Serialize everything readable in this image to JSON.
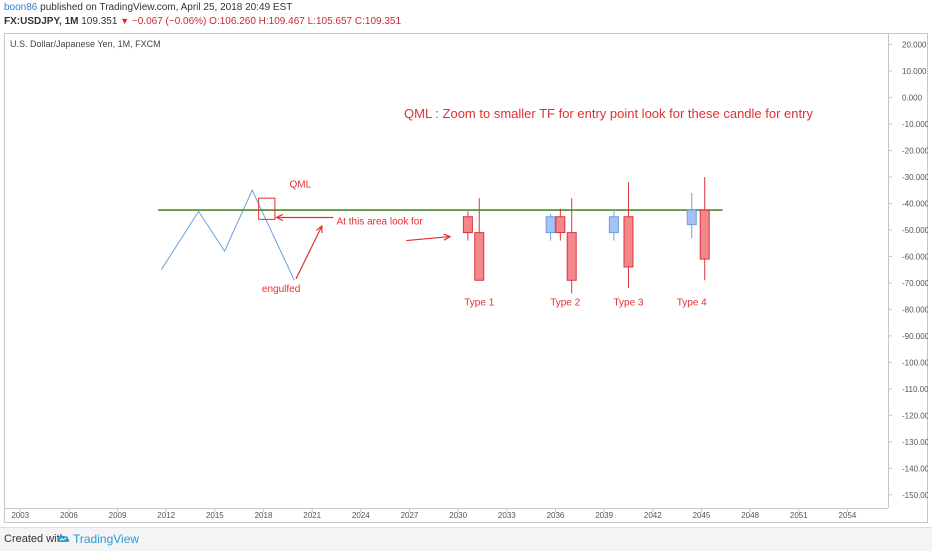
{
  "header": {
    "author": "boon86",
    "published_text": "published on TradingView.com, April 25, 2018 20:49 EST",
    "symbol": "FX:USDJPY, 1M",
    "last": "109.351",
    "change": "−0.067 (−0.06%)",
    "ohlc_o": "O:106.260",
    "ohlc_h": "H:109.467",
    "ohlc_l": "L:105.657",
    "ohlc_c": "C:109.351"
  },
  "chart": {
    "title": "U.S. Dollar/Japanese Yen, 1M, FXCM"
  },
  "footer": {
    "created_with": "Created with",
    "brand": "TradingView"
  },
  "colors": {
    "up": "#a4c2f4",
    "up_border": "#6f9ed8",
    "down": "#f4878c",
    "down_border": "#d9363e",
    "annotation": "#e03030",
    "level_line": "#4c8a2a",
    "price_line": "#6a9fd8"
  },
  "chart_data": {
    "type": "candlestick",
    "xlim": [
      2002,
      2056.5
    ],
    "ylim": [
      -155,
      24
    ],
    "x_ticks": [
      "2003",
      "2006",
      "2009",
      "2012",
      "2015",
      "2018",
      "2021",
      "2024",
      "2027",
      "2030",
      "2033",
      "2036",
      "2039",
      "2042",
      "2045",
      "2048",
      "2051",
      "2054"
    ],
    "y_ticks": [
      "20.000",
      "10.000",
      "0.000",
      "-10.000",
      "-20.000",
      "-30.000",
      "-40.000",
      "-50.000",
      "-60.000",
      "-70.000",
      "-80.000",
      "-90.000",
      "-100.000",
      "-110.000",
      "-120.000",
      "-130.000",
      "-140.000",
      "-150.000"
    ],
    "price_line": [
      {
        "x": 2011.7,
        "y": -65
      },
      {
        "x": 2014.0,
        "y": -43
      },
      {
        "x": 2015.6,
        "y": -58
      },
      {
        "x": 2017.3,
        "y": -35
      },
      {
        "x": 2019.9,
        "y": -69
      }
    ],
    "level_line": {
      "y": -42.5,
      "x_start": 2011.5,
      "x_end": 2046.3
    },
    "candles": [
      {
        "x": 2030.6,
        "open": -45,
        "close": -51,
        "high": -43,
        "low": -54
      },
      {
        "x": 2031.3,
        "open": -51,
        "close": -69,
        "high": -38,
        "low": -69
      },
      {
        "x": 2035.7,
        "open": -51,
        "close": -45,
        "high": -44,
        "low": -54
      },
      {
        "x": 2036.3,
        "open": -45,
        "close": -51,
        "high": -42,
        "low": -54
      },
      {
        "x": 2037.0,
        "open": -51,
        "close": -69,
        "high": -38,
        "low": -74
      },
      {
        "x": 2039.6,
        "open": -51,
        "close": -45,
        "high": -42,
        "low": -54
      },
      {
        "x": 2040.5,
        "open": -45,
        "close": -64,
        "high": -32,
        "low": -72
      },
      {
        "x": 2044.4,
        "open": -48,
        "close": -42.5,
        "high": -36,
        "low": -53
      },
      {
        "x": 2045.2,
        "open": -42.5,
        "close": -61,
        "high": -30,
        "low": -69
      }
    ],
    "annotations": {
      "heading": "QML : Zoom to smaller TF for entry point look for these candle for entry",
      "qml_label": "QML",
      "area_label": "At this area look for",
      "engulfed_label": "engulfed",
      "type_labels": [
        {
          "text": "Type 1",
          "x": 2031.3
        },
        {
          "text": "Type 2",
          "x": 2036.6
        },
        {
          "text": "Type 3",
          "x": 2040.5
        },
        {
          "text": "Type 4",
          "x": 2044.4
        }
      ]
    }
  }
}
